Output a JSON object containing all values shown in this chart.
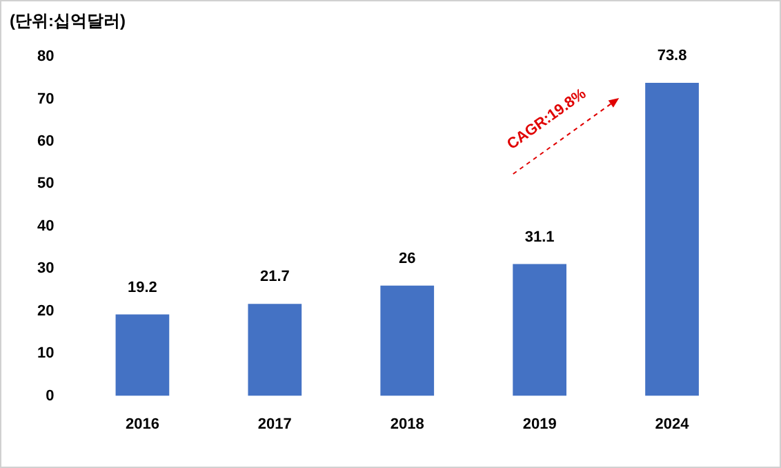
{
  "chart_data": {
    "type": "bar",
    "ylabel": "(단위:십억달러)",
    "categories": [
      "2016",
      "2017",
      "2018",
      "2019",
      "2024"
    ],
    "values": [
      19.2,
      21.7,
      26,
      31.1,
      73.8
    ],
    "color": "#4472c4",
    "ylim": [
      0,
      80
    ],
    "yticks": [
      0,
      10,
      20,
      30,
      40,
      50,
      60,
      70,
      80
    ],
    "grid": false,
    "data_labels": true,
    "annotations": [
      "CAGR:19.8%"
    ]
  }
}
